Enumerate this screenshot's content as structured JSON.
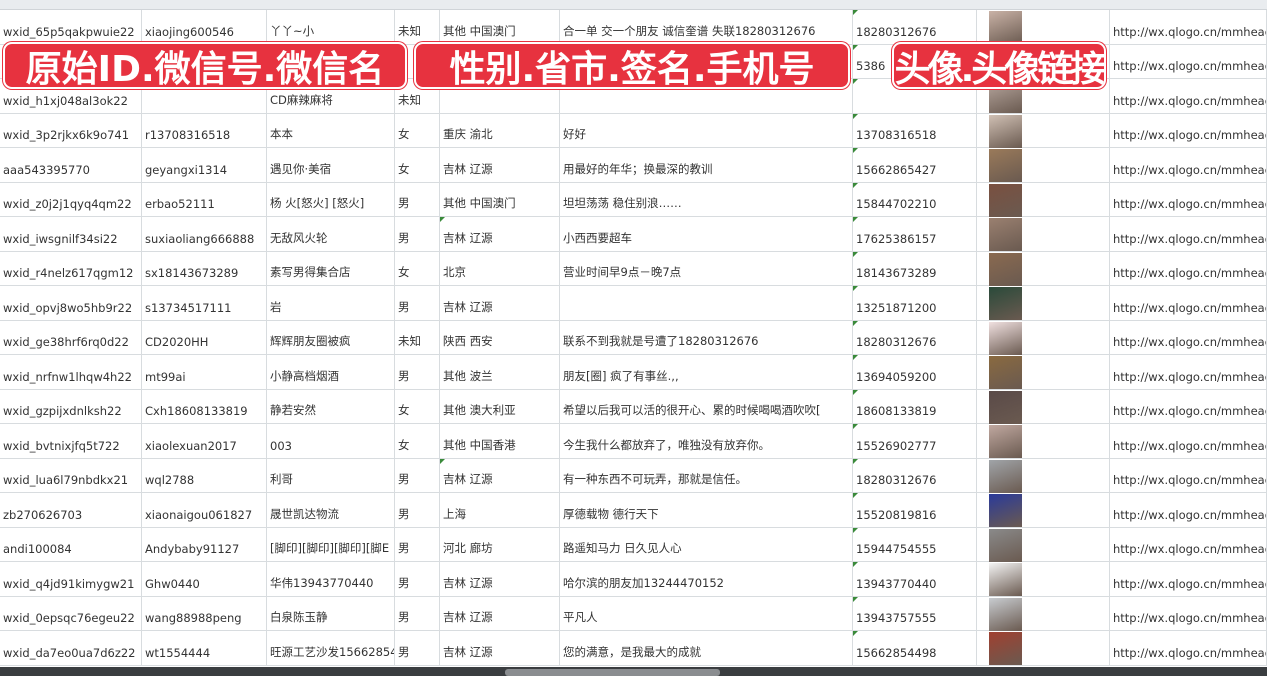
{
  "banners": [
    "原始ID.微信号.微信名",
    "性别.省市.签名.手机号",
    "头像.头像链接"
  ],
  "colors": {
    "banner": "#e7323f",
    "grid": "#d8dcdf",
    "comment_marker": "#3a8a3a"
  },
  "rows": [
    [
      "wxid_65p5qakpwuie22",
      "xiaojing600546",
      "丫丫~小",
      "未知",
      "其他 中国澳门",
      "合一单 交一个朋友 诚信奎谱 失联18280312676",
      "18280312676",
      "http://wx.qlogo.cn/mmhead"
    ],
    [
      "",
      "",
      "",
      "",
      "",
      "",
      "5386",
      "http://wx.qlogo.cn/mmhead"
    ],
    [
      "wxid_h1xj048al3ok22",
      "",
      "CD麻辣麻将",
      "未知",
      "",
      "",
      "",
      "http://wx.qlogo.cn/mmhead"
    ],
    [
      "wxid_3p2rjkx6k9o741",
      "r13708316518",
      "本本",
      "女",
      "重庆 渝北",
      "好好",
      "13708316518",
      "http://wx.qlogo.cn/mmhead"
    ],
    [
      "aaa543395770",
      "geyangxi1314",
      "遇见你·美宿",
      "女",
      "吉林 辽源",
      "用最好的年华；换最深的教训",
      "15662865427",
      "http://wx.qlogo.cn/mmhead"
    ],
    [
      "wxid_z0j2j1qyq4qm22",
      "erbao52111",
      "杨 火[怒火] [怒火]",
      "男",
      "其他 中国澳门",
      "坦坦荡荡 稳住别浪……",
      "15844702210",
      "http://wx.qlogo.cn/mmhead"
    ],
    [
      "wxid_iwsgnilf34si22",
      "suxiaoliang666888",
      "无敌风火轮",
      "男",
      "吉林 辽源",
      "小西西要超车",
      "17625386157",
      "http://wx.qlogo.cn/mmhead"
    ],
    [
      "wxid_r4nelz617qgm12",
      "sx18143673289",
      "素写男得集合店",
      "女",
      "北京",
      "营业时间早9点－晚7点",
      "18143673289",
      "http://wx.qlogo.cn/mmhead"
    ],
    [
      "wxid_opvj8wo5hb9r22",
      "s13734517111",
      "岩",
      "男",
      "吉林 辽源",
      "",
      "13251871200",
      "http://wx.qlogo.cn/mmhead"
    ],
    [
      "wxid_ge38hrf6rq0d22",
      "CD2020HH",
      "辉辉朋友圈被疯",
      "未知",
      "陕西 西安",
      "联系不到我就是号遭了18280312676",
      "18280312676",
      "http://wx.qlogo.cn/mmhead"
    ],
    [
      "wxid_nrfnw1lhqw4h22",
      "mt99ai",
      "小静高档烟酒",
      "男",
      "其他 波兰",
      "朋友[圈] 疯了有事丝.,,",
      "13694059200",
      "http://wx.qlogo.cn/mmhead"
    ],
    [
      "wxid_gzpijxdnlksh22",
      "Cxh18608133819",
      "静若安然",
      "女",
      "其他 澳大利亚",
      "希望以后我可以活的很开心、累的时候喝喝酒吹吹[",
      "18608133819",
      "http://wx.qlogo.cn/mmhead"
    ],
    [
      "wxid_bvtnixjfq5t722",
      "xiaolexuan2017",
      "003",
      "女",
      "其他 中国香港",
      "今生我什么都放弃了，唯独没有放弃你。",
      "15526902777",
      "http://wx.qlogo.cn/mmhead"
    ],
    [
      "wxid_lua6l79nbdkx21",
      "wql2788",
      "利哥",
      "男",
      "吉林 辽源",
      "有一种东西不可玩弄，那就是信任。",
      "18280312676",
      "http://wx.qlogo.cn/mmhead"
    ],
    [
      "zb270626703",
      "xiaonaigou061827",
      "晟世凯达物流",
      "男",
      "上海",
      "厚德载物 德行天下",
      "15520819816",
      "http://wx.qlogo.cn/mmhead"
    ],
    [
      "andi100084",
      "Andybaby91127",
      "[脚印][脚印][脚印][脚E",
      "男",
      "河北 廊坊",
      "路遥知马力 日久见人心",
      "15944754555",
      "http://wx.qlogo.cn/mmhead"
    ],
    [
      "wxid_q4jd91kimygw21",
      "Ghw0440",
      "华伟13943770440",
      "男",
      "吉林 辽源",
      "哈尔滨的朋友加13244470152",
      "13943770440",
      "http://wx.qlogo.cn/mmhead"
    ],
    [
      "wxid_0epsqc76egeu22",
      "wang88988peng",
      "白泉陈玉静",
      "男",
      "吉林 辽源",
      "平凡人",
      "13943757555",
      "http://wx.qlogo.cn/mmhead"
    ],
    [
      "wxid_da7eo0ua7d6z22",
      "wt1554444",
      "旺源工艺沙发15662854",
      "男",
      "吉林 辽源",
      "您的满意，是我最大的成就",
      "15662854498",
      "http://wx.qlogo.cn/mmhead"
    ]
  ],
  "avatar_colors": [
    "#c9b2a6",
    "#8a7a9a",
    "#b8a8a0",
    "#d0c0b4",
    "#9a7a5a",
    "#7a5040",
    "#9a8070",
    "#8a6a50",
    "#2a4a3a",
    "#f0e0e0",
    "#8a6a40",
    "#5a4a48",
    "#c0a8a0",
    "#a0a4a8",
    "#2a3a9a",
    "#8a8a8a",
    "#f4f4f4",
    "#c8ccd0",
    "#a04030"
  ]
}
